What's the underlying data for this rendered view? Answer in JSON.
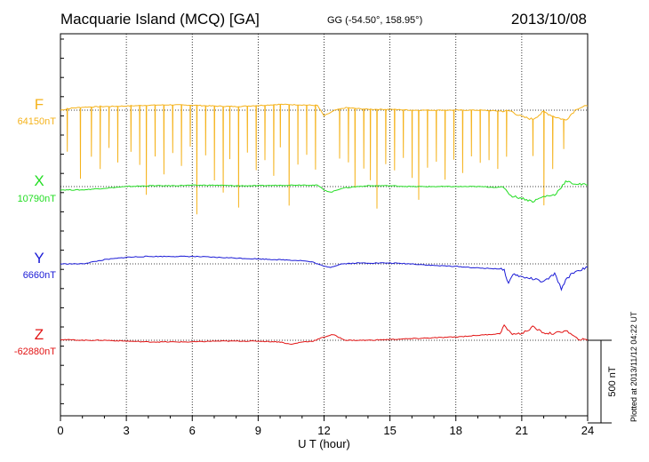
{
  "header": {
    "station": "Macquarie Island (MCQ)  [GA]",
    "coordinates": "GG (-54.50°, 158.95°)",
    "date": "2013/10/08"
  },
  "footer": {
    "plotted": "Plotted at 2013/11/12 04:22 UT"
  },
  "chart_data": {
    "type": "line",
    "xlabel": "U T (hour)",
    "xlim": [
      0,
      24
    ],
    "xticks": [
      0,
      3,
      6,
      9,
      12,
      15,
      18,
      21,
      24
    ],
    "grid": true,
    "scale_bar_label": "500 nT",
    "scale_bar_nT": 500,
    "series": [
      {
        "name": "F",
        "base_label": "64150nT",
        "base_nT": 64150,
        "color": "#f5b31c",
        "x": [
          0,
          0.5,
          1,
          2,
          3,
          4,
          5,
          6,
          7,
          8,
          9,
          10,
          11,
          11.7,
          12,
          12.5,
          13,
          14,
          15,
          16,
          17,
          18,
          19,
          20,
          20.5,
          21,
          21.5,
          22,
          22.5,
          23,
          23.5,
          24
        ],
        "values": [
          0,
          12,
          18,
          22,
          25,
          30,
          32,
          30,
          25,
          22,
          28,
          35,
          32,
          28,
          -35,
          0,
          15,
          5,
          5,
          0,
          0,
          0,
          0,
          -5,
          -5,
          -40,
          -55,
          -10,
          -40,
          -60,
          10,
          25
        ],
        "dips": [
          {
            "x": 0.3,
            "depth": 260
          },
          {
            "x": 0.9,
            "depth": 430
          },
          {
            "x": 1.4,
            "depth": 300
          },
          {
            "x": 1.8,
            "depth": 380
          },
          {
            "x": 2.2,
            "depth": 250
          },
          {
            "x": 2.6,
            "depth": 340
          },
          {
            "x": 3.2,
            "depth": 280
          },
          {
            "x": 3.6,
            "depth": 360
          },
          {
            "x": 3.9,
            "depth": 540
          },
          {
            "x": 4.3,
            "depth": 310
          },
          {
            "x": 4.7,
            "depth": 420
          },
          {
            "x": 5.1,
            "depth": 290
          },
          {
            "x": 5.5,
            "depth": 370
          },
          {
            "x": 5.9,
            "depth": 250
          },
          {
            "x": 6.2,
            "depth": 660
          },
          {
            "x": 6.6,
            "depth": 300
          },
          {
            "x": 7.0,
            "depth": 450
          },
          {
            "x": 7.4,
            "depth": 520
          },
          {
            "x": 7.7,
            "depth": 320
          },
          {
            "x": 8.1,
            "depth": 610
          },
          {
            "x": 8.5,
            "depth": 280
          },
          {
            "x": 8.9,
            "depth": 390
          },
          {
            "x": 9.3,
            "depth": 330
          },
          {
            "x": 9.7,
            "depth": 430
          },
          {
            "x": 10.0,
            "depth": 260
          },
          {
            "x": 10.4,
            "depth": 610
          },
          {
            "x": 10.8,
            "depth": 360
          },
          {
            "x": 11.2,
            "depth": 300
          },
          {
            "x": 11.6,
            "depth": 390
          },
          {
            "x": 12.7,
            "depth": 300
          },
          {
            "x": 13.1,
            "depth": 330
          },
          {
            "x": 13.4,
            "depth": 480
          },
          {
            "x": 13.8,
            "depth": 360
          },
          {
            "x": 14.1,
            "depth": 430
          },
          {
            "x": 14.4,
            "depth": 600
          },
          {
            "x": 14.8,
            "depth": 330
          },
          {
            "x": 15.2,
            "depth": 370
          },
          {
            "x": 15.6,
            "depth": 290
          },
          {
            "x": 16.0,
            "depth": 410
          },
          {
            "x": 16.3,
            "depth": 540
          },
          {
            "x": 16.7,
            "depth": 350
          },
          {
            "x": 17.1,
            "depth": 310
          },
          {
            "x": 17.5,
            "depth": 420
          },
          {
            "x": 17.9,
            "depth": 300
          },
          {
            "x": 18.3,
            "depth": 380
          },
          {
            "x": 18.7,
            "depth": 280
          },
          {
            "x": 19.1,
            "depth": 320
          },
          {
            "x": 19.5,
            "depth": 300
          },
          {
            "x": 19.9,
            "depth": 350
          },
          {
            "x": 20.3,
            "depth": 280
          },
          {
            "x": 21.5,
            "depth": 220
          },
          {
            "x": 22.0,
            "depth": 570
          },
          {
            "x": 22.4,
            "depth": 320
          },
          {
            "x": 22.9,
            "depth": 180
          }
        ]
      },
      {
        "name": "X",
        "base_label": "10790nT",
        "base_nT": 10790,
        "color": "#22dd22",
        "x": [
          0,
          1,
          2,
          3,
          4,
          5,
          6,
          7,
          8,
          9,
          10,
          11,
          11.7,
          12,
          12.3,
          12.8,
          13.5,
          14,
          15,
          16,
          17,
          18,
          19,
          20,
          20.2,
          20.5,
          21,
          21.5,
          22,
          22.5,
          23,
          23.5,
          24
        ],
        "values": [
          -20,
          -20,
          -10,
          0,
          5,
          5,
          8,
          8,
          5,
          5,
          8,
          10,
          8,
          -20,
          -35,
          -10,
          0,
          5,
          5,
          0,
          0,
          0,
          0,
          -5,
          -5,
          -55,
          -70,
          -90,
          -60,
          -50,
          30,
          15,
          10
        ]
      },
      {
        "name": "Y",
        "base_label": "6660nT",
        "base_nT": 6660,
        "color": "#1a1ad6",
        "x": [
          0,
          1,
          2,
          3,
          4,
          5,
          6,
          7,
          8,
          9,
          10,
          11,
          11.5,
          12,
          12.3,
          12.8,
          13.5,
          15,
          16,
          17,
          18,
          19,
          20,
          20.2,
          20.4,
          20.6,
          21,
          21.5,
          22,
          22.5,
          22.8,
          23,
          23.3,
          24
        ],
        "values": [
          0,
          0,
          25,
          40,
          45,
          45,
          45,
          40,
          35,
          30,
          25,
          20,
          10,
          -15,
          -20,
          0,
          5,
          5,
          0,
          -10,
          -15,
          -25,
          -30,
          -40,
          -120,
          -60,
          -80,
          -90,
          -110,
          -60,
          -150,
          -100,
          -55,
          -20
        ]
      },
      {
        "name": "Z",
        "base_label": "-62880nT",
        "base_nT": -62880,
        "color": "#e21414",
        "x": [
          0,
          1,
          2,
          3,
          4,
          5,
          6,
          7,
          8,
          9,
          10,
          10.5,
          11,
          11.5,
          12,
          12.4,
          12.8,
          13,
          14,
          15,
          16,
          17,
          18,
          19,
          20,
          20.2,
          20.5,
          21,
          21.5,
          22,
          22.5,
          23,
          23.5,
          24
        ],
        "values": [
          5,
          0,
          0,
          -5,
          -10,
          -10,
          -10,
          -5,
          -5,
          -5,
          -10,
          -25,
          -10,
          -5,
          20,
          35,
          10,
          0,
          0,
          5,
          10,
          15,
          20,
          30,
          40,
          90,
          40,
          40,
          80,
          45,
          40,
          60,
          10,
          0
        ]
      }
    ]
  }
}
